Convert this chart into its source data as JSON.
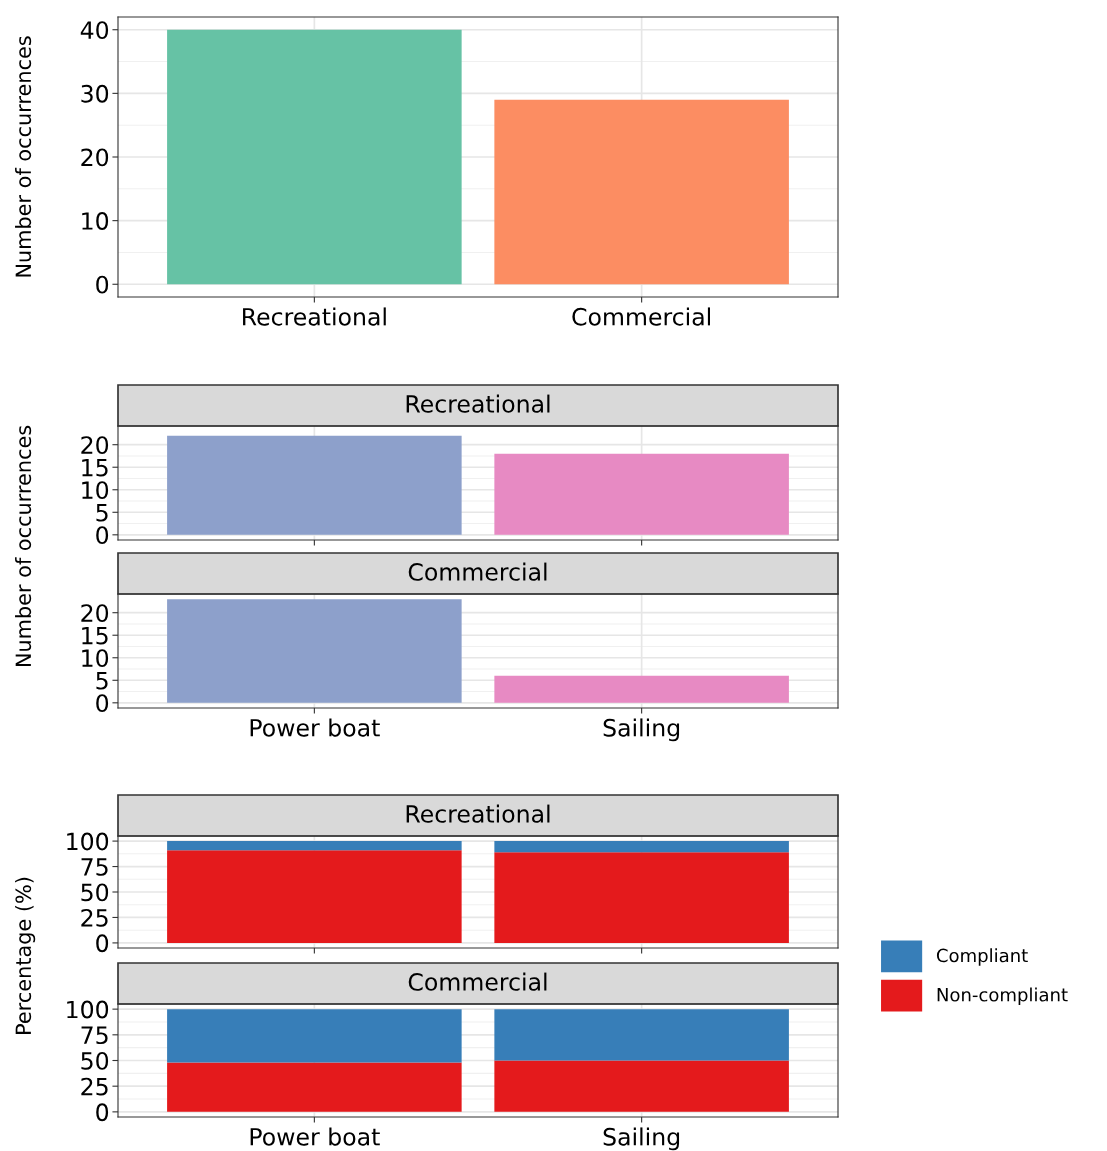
{
  "chart_data": [
    {
      "type": "bar",
      "ylabel": "Number of occurrences",
      "categories": [
        "Recreational",
        "Commercial"
      ],
      "values": [
        40,
        29
      ],
      "colors": [
        "#66c2a5",
        "#fc8d62"
      ],
      "ylim": [
        -2,
        42
      ],
      "yticks": [
        0,
        10,
        20,
        30,
        40
      ],
      "grid": true
    },
    {
      "type": "bar",
      "title": "Recreational",
      "ylabel": "Number of occurrences",
      "categories": [
        null,
        null
      ],
      "values": [
        22,
        18
      ],
      "colors": [
        "#8da0cb",
        "#e78ac3"
      ],
      "ylim": [
        -1.15,
        24.15
      ],
      "yticks": [
        0,
        5,
        10,
        15,
        20
      ],
      "grid": true,
      "tick_labels": "y"
    },
    {
      "type": "bar",
      "title": "Commercial",
      "categories": [
        "Power boat",
        "Sailing"
      ],
      "values": [
        23,
        6
      ],
      "colors": [
        "#8da0cb",
        "#e78ac3"
      ],
      "ylim": [
        -1.15,
        24.15
      ],
      "yticks": [
        0,
        5,
        10,
        15,
        20
      ],
      "grid": true
    },
    {
      "type": "bar",
      "title": "Recreational",
      "ylabel": "Percentage (%)",
      "categories": [
        null,
        null
      ],
      "stacked": true,
      "series": [
        {
          "name": "Non-compliant",
          "color": "#e41a1c",
          "values": [
            91,
            89
          ]
        },
        {
          "name": "Compliant",
          "color": "#377eb8",
          "values": [
            9,
            11
          ]
        }
      ],
      "ylim": [
        -5,
        105
      ],
      "yticks": [
        0,
        25,
        50,
        75,
        100
      ],
      "grid": true,
      "tick_labels": "y",
      "legend": "right"
    },
    {
      "type": "bar",
      "title": "Commercial",
      "categories": [
        "Power boat",
        "Sailing"
      ],
      "stacked": true,
      "series": [
        {
          "name": "Non-compliant",
          "color": "#e41a1c",
          "values": [
            48,
            50
          ]
        },
        {
          "name": "Compliant",
          "color": "#377eb8",
          "values": [
            52,
            50
          ]
        }
      ],
      "ylim": [
        -5,
        105
      ],
      "yticks": [
        0,
        25,
        50,
        75,
        100
      ],
      "grid": true,
      "legend": "right"
    }
  ]
}
